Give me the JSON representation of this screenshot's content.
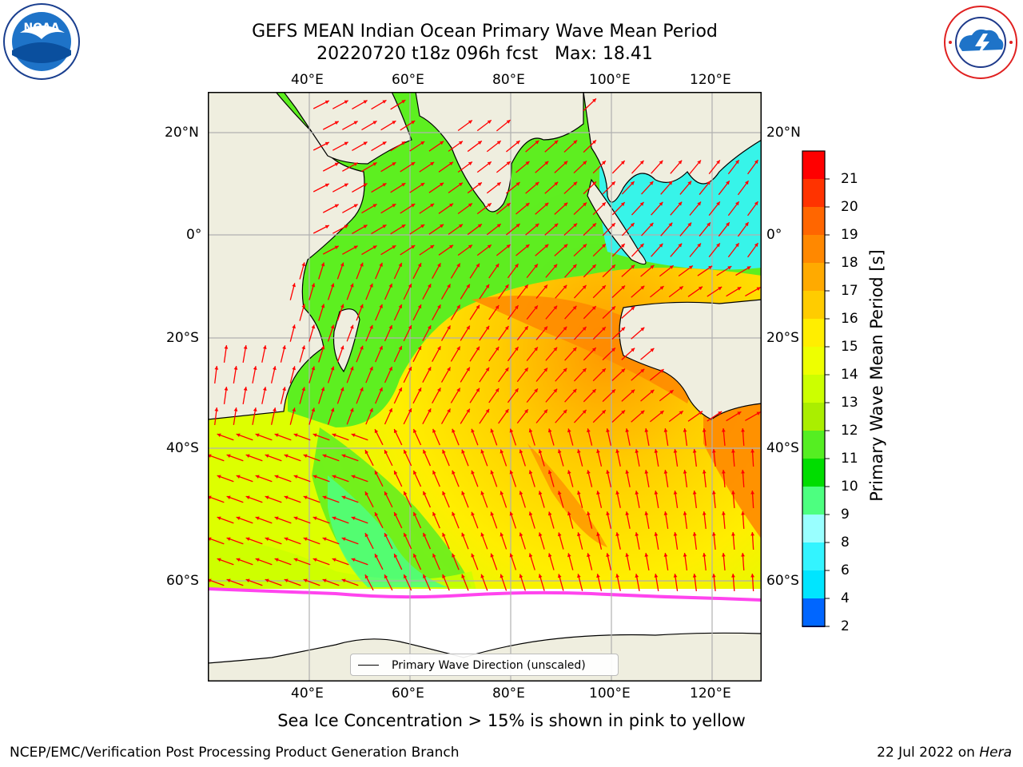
{
  "header": {
    "title_line1": "GEFS MEAN Indian Ocean Primary Wave Mean Period",
    "title_line2": "20220720 t18z 096h fcst   Max: 18.41"
  },
  "map": {
    "lon_labels": [
      "40°E",
      "60°E",
      "80°E",
      "100°E",
      "120°E"
    ],
    "lat_labels_left": [
      "20°N",
      "0°",
      "20°S",
      "40°S",
      "60°S"
    ],
    "lat_labels_right": [
      "20°N",
      "0°",
      "20°S",
      "40°S",
      "60°S"
    ],
    "legend_label": "Primary Wave Direction (unscaled)",
    "arrow_color": "#ff0000",
    "land_color": "#efeedf",
    "sea_ice_color": "#ffffff"
  },
  "colorbar": {
    "label": "Primary Wave Mean Period [s]",
    "ticks": [
      "2",
      "4",
      "6",
      "8",
      "9",
      "10",
      "11",
      "12",
      "13",
      "14",
      "15",
      "16",
      "17",
      "18",
      "19",
      "20",
      "21"
    ],
    "colors": [
      "#0066ff",
      "#00e5ff",
      "#33f4ff",
      "#99ffff",
      "#4dff80",
      "#00dd00",
      "#55ee22",
      "#aaee00",
      "#ccff00",
      "#eeff00",
      "#ffee00",
      "#ffcc00",
      "#ffaa00",
      "#ff8800",
      "#ff6600",
      "#ff3300",
      "#ff0000"
    ],
    "under_color": "#0000ff"
  },
  "footer": {
    "note": "Sea Ice Concentration > 15% is shown in pink to yellow",
    "credit_left": "NCEP/EMC/Verification Post Processing Product Generation Branch",
    "credit_right_date": "22 Jul 2022 on",
    "credit_right_machine": "Hera"
  },
  "logos": {
    "left_icon": "noaa-logo-icon",
    "right_icon": "nws-logo-icon"
  }
}
